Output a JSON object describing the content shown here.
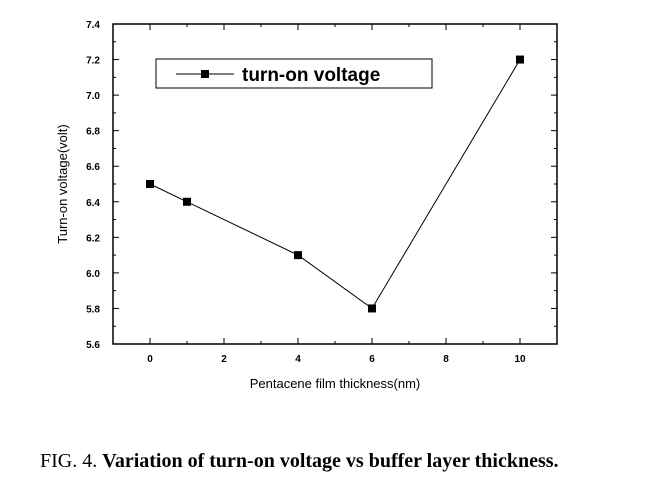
{
  "chart_data": {
    "type": "line",
    "x": [
      0,
      1,
      4,
      6,
      10
    ],
    "series": [
      {
        "name": "turn-on voltage",
        "values": [
          6.5,
          6.4,
          6.1,
          5.8,
          7.2
        ],
        "marker": "square"
      }
    ],
    "xlabel": "Pentacene film thickness(nm)",
    "ylabel": "Turn-on voltage(volt)",
    "xlim": [
      -1,
      11
    ],
    "ylim": [
      5.6,
      7.4
    ],
    "x_ticks": [
      "0",
      "2",
      "4",
      "6",
      "8",
      "10"
    ],
    "y_ticks": [
      "5.6",
      "5.8",
      "6.0",
      "6.2",
      "6.4",
      "6.6",
      "6.8",
      "7.0",
      "7.2",
      "7.4"
    ],
    "grid": false,
    "legend_position": "top-left",
    "colors": {
      "line": "#000000",
      "marker": "#000000"
    }
  },
  "caption": {
    "prefix": "FIG. 4.",
    "text": "Variation of turn-on voltage vs buffer layer thickness."
  }
}
